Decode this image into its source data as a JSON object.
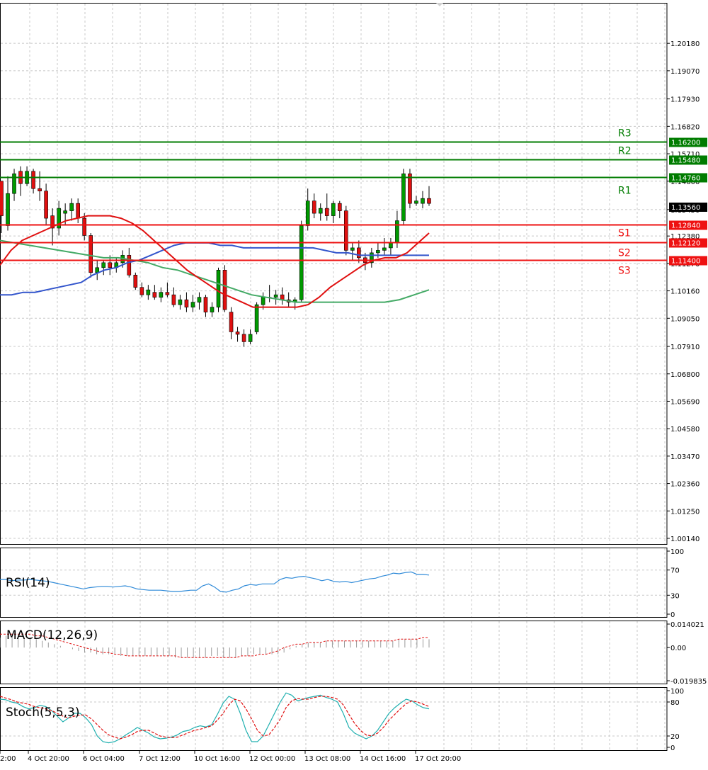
{
  "chart_data": [
    {
      "type": "candlestick",
      "panel": "price",
      "ylim": [
        1.0014,
        1.2073
      ],
      "price_ticks": [
        "1.20180",
        "1.19070",
        "1.17930",
        "1.16820",
        "1.15710",
        "1.14600",
        "1.13450",
        "1.12380",
        "1.11270",
        "1.10160",
        "1.09050",
        "1.07910",
        "1.06800",
        "1.05690",
        "1.04580",
        "1.03470",
        "1.02360",
        "1.01250",
        "1.00140"
      ],
      "x_ticks": [
        "2:00",
        "4 Oct 20:00",
        "6 Oct 04:00",
        "7 Oct 12:00",
        "10 Oct 16:00",
        "12 Oct 00:00",
        "13 Oct 08:00",
        "14 Oct 16:00",
        "17 Oct 20:00"
      ],
      "current_price": {
        "value": 1.1356,
        "label": "1.13560",
        "color": "#000000"
      },
      "levels": [
        {
          "name": "R3",
          "value": 1.162,
          "label": "1.16200",
          "color": "#007c00"
        },
        {
          "name": "R2",
          "value": 1.1548,
          "label": "1.15480",
          "color": "#007c00"
        },
        {
          "name": "R1",
          "value": 1.1476,
          "label": "1.14760",
          "color": "#007c00"
        },
        {
          "name": "S1",
          "value": 1.1284,
          "label": "1.12840",
          "color": "#ee1111"
        },
        {
          "name": "S2",
          "value": 1.1212,
          "label": "1.12120",
          "color": "#ee1111"
        },
        {
          "name": "S3",
          "value": 1.114,
          "label": "1.11400",
          "color": "#ee1111"
        }
      ],
      "candles": [
        [
          1.146,
          1.144,
          1.125,
          1.132
        ],
        [
          1.128,
          1.148,
          1.126,
          1.141
        ],
        [
          1.141,
          1.151,
          1.138,
          1.149
        ],
        [
          1.15,
          1.152,
          1.14,
          1.145
        ],
        [
          1.145,
          1.152,
          1.144,
          1.15
        ],
        [
          1.15,
          1.151,
          1.141,
          1.143
        ],
        [
          1.143,
          1.15,
          1.138,
          1.142
        ],
        [
          1.142,
          1.145,
          1.128,
          1.131
        ],
        [
          1.132,
          1.135,
          1.12,
          1.127
        ],
        [
          1.127,
          1.138,
          1.124,
          1.135
        ],
        [
          1.133,
          1.137,
          1.128,
          1.134
        ],
        [
          1.134,
          1.139,
          1.13,
          1.137
        ],
        [
          1.137,
          1.139,
          1.129,
          1.131
        ],
        [
          1.131,
          1.133,
          1.122,
          1.124
        ],
        [
          1.124,
          1.125,
          1.107,
          1.109
        ],
        [
          1.109,
          1.114,
          1.106,
          1.111
        ],
        [
          1.111,
          1.114,
          1.108,
          1.113
        ],
        [
          1.113,
          1.116,
          1.108,
          1.111
        ],
        [
          1.111,
          1.115,
          1.109,
          1.113
        ],
        [
          1.113,
          1.118,
          1.111,
          1.116
        ],
        [
          1.116,
          1.119,
          1.107,
          1.108
        ],
        [
          1.108,
          1.109,
          1.102,
          1.103
        ],
        [
          1.103,
          1.105,
          1.099,
          1.1
        ],
        [
          1.1,
          1.104,
          1.098,
          1.102
        ],
        [
          1.101,
          1.104,
          1.098,
          1.099
        ],
        [
          1.099,
          1.103,
          1.097,
          1.101
        ],
        [
          1.101,
          1.105,
          1.099,
          1.1
        ],
        [
          1.1,
          1.103,
          1.095,
          1.096
        ],
        [
          1.096,
          1.1,
          1.094,
          1.098
        ],
        [
          1.098,
          1.101,
          1.093,
          1.095
        ],
        [
          1.095,
          1.1,
          1.093,
          1.097
        ],
        [
          1.097,
          1.101,
          1.094,
          1.099
        ],
        [
          1.099,
          1.1,
          1.091,
          1.093
        ],
        [
          1.093,
          1.097,
          1.091,
          1.095
        ],
        [
          1.095,
          1.111,
          1.093,
          1.11
        ],
        [
          1.11,
          1.112,
          1.093,
          1.094
        ],
        [
          1.093,
          1.095,
          1.082,
          1.085
        ],
        [
          1.085,
          1.087,
          1.081,
          1.084
        ],
        [
          1.084,
          1.086,
          1.079,
          1.081
        ],
        [
          1.081,
          1.086,
          1.08,
          1.084
        ],
        [
          1.085,
          1.097,
          1.084,
          1.096
        ],
        [
          1.096,
          1.101,
          1.094,
          1.099
        ],
        [
          1.099,
          1.104,
          1.097,
          1.099
        ],
        [
          1.099,
          1.102,
          1.096,
          1.1
        ],
        [
          1.1,
          1.103,
          1.096,
          1.098
        ],
        [
          1.098,
          1.101,
          1.095,
          1.097
        ],
        [
          1.097,
          1.099,
          1.094,
          1.098
        ],
        [
          1.098,
          1.13,
          1.097,
          1.128
        ],
        [
          1.128,
          1.143,
          1.126,
          1.138
        ],
        [
          1.138,
          1.141,
          1.131,
          1.133
        ],
        [
          1.133,
          1.137,
          1.13,
          1.135
        ],
        [
          1.135,
          1.141,
          1.13,
          1.132
        ],
        [
          1.132,
          1.138,
          1.129,
          1.137
        ],
        [
          1.137,
          1.138,
          1.131,
          1.134
        ],
        [
          1.134,
          1.136,
          1.116,
          1.118
        ],
        [
          1.118,
          1.121,
          1.114,
          1.119
        ],
        [
          1.119,
          1.122,
          1.113,
          1.115
        ],
        [
          1.115,
          1.117,
          1.11,
          1.113
        ],
        [
          1.113,
          1.119,
          1.111,
          1.117
        ],
        [
          1.117,
          1.121,
          1.115,
          1.118
        ],
        [
          1.118,
          1.123,
          1.116,
          1.119
        ],
        [
          1.119,
          1.123,
          1.116,
          1.121
        ],
        [
          1.121,
          1.134,
          1.119,
          1.13
        ],
        [
          1.13,
          1.151,
          1.128,
          1.149
        ],
        [
          1.149,
          1.151,
          1.135,
          1.137
        ],
        [
          1.137,
          1.14,
          1.136,
          1.138
        ],
        [
          1.137,
          1.142,
          1.135,
          1.139
        ],
        [
          1.139,
          1.144,
          1.136,
          1.137
        ]
      ],
      "ma_red": [
        1.112,
        1.118,
        1.122,
        1.124,
        1.126,
        1.128,
        1.13,
        1.131,
        1.132,
        1.132,
        1.132,
        1.131,
        1.129,
        1.126,
        1.122,
        1.118,
        1.114,
        1.11,
        1.107,
        1.104,
        1.101,
        1.099,
        1.097,
        1.095,
        1.095,
        1.095,
        1.095,
        1.095,
        1.096,
        1.099,
        1.103,
        1.106,
        1.109,
        1.112,
        1.114,
        1.115,
        1.115,
        1.117,
        1.121,
        1.125
      ],
      "ma_blue": [
        1.1,
        1.1,
        1.101,
        1.101,
        1.102,
        1.103,
        1.104,
        1.105,
        1.108,
        1.11,
        1.111,
        1.113,
        1.114,
        1.116,
        1.118,
        1.12,
        1.121,
        1.121,
        1.121,
        1.12,
        1.12,
        1.119,
        1.119,
        1.119,
        1.119,
        1.119,
        1.119,
        1.119,
        1.118,
        1.117,
        1.117,
        1.116,
        1.116,
        1.116,
        1.116,
        1.116,
        1.116,
        1.116
      ],
      "ma_green": [
        1.122,
        1.121,
        1.12,
        1.119,
        1.118,
        1.117,
        1.116,
        1.115,
        1.115,
        1.114,
        1.113,
        1.111,
        1.11,
        1.108,
        1.106,
        1.104,
        1.102,
        1.1,
        1.099,
        1.098,
        1.097,
        1.097,
        1.097,
        1.097,
        1.097,
        1.097,
        1.097,
        1.098,
        1.1,
        1.102
      ]
    },
    {
      "type": "line",
      "panel": "rsi",
      "title": "RSI(14)",
      "ylim": [
        0,
        100
      ],
      "y_ticks": [
        "100",
        "70",
        "30",
        "0"
      ],
      "values": [
        55,
        55,
        53,
        54,
        54,
        55,
        54,
        53,
        52,
        50,
        48,
        46,
        44,
        42,
        40,
        42,
        43,
        44,
        44,
        43,
        44,
        45,
        43,
        40,
        39,
        38,
        38,
        38,
        37,
        36,
        36,
        37,
        38,
        38,
        45,
        48,
        43,
        36,
        35,
        38,
        40,
        45,
        47,
        46,
        48,
        48,
        48,
        55,
        58,
        57,
        59,
        60,
        58,
        56,
        53,
        55,
        52,
        51,
        52,
        50,
        52,
        54,
        56,
        57,
        60,
        62,
        65,
        64,
        66,
        67,
        63,
        63,
        62
      ]
    },
    {
      "type": "macd",
      "panel": "macd",
      "title": "MACD(12,26,9)",
      "ylim": [
        -0.019835,
        0.014021
      ],
      "y_ticks": [
        "0.014021",
        "0.00",
        "-0.019835"
      ],
      "histogram": [
        0.006,
        0.007,
        0.007,
        0.006,
        0.006,
        0.006,
        0.005,
        0.004,
        0.003,
        0.002,
        0.001,
        0.0,
        -0.001,
        -0.002,
        -0.003,
        -0.003,
        -0.004,
        -0.004,
        -0.004,
        -0.004,
        -0.005,
        -0.005,
        -0.005,
        -0.005,
        -0.005,
        -0.005,
        -0.005,
        -0.005,
        -0.005,
        -0.006,
        -0.006,
        -0.006,
        -0.006,
        -0.006,
        -0.006,
        -0.005,
        -0.005,
        -0.006,
        -0.006,
        -0.006,
        -0.005,
        -0.005,
        -0.004,
        -0.004,
        -0.004,
        -0.004,
        -0.004,
        -0.003,
        -0.001,
        0.001,
        0.002,
        0.003,
        0.003,
        0.003,
        0.004,
        0.004,
        0.004,
        0.004,
        0.004,
        0.004,
        0.004,
        0.004,
        0.004,
        0.004,
        0.004,
        0.004,
        0.005,
        0.005,
        0.005,
        0.005,
        0.005,
        0.005
      ],
      "signal": [
        0.008,
        0.008,
        0.008,
        0.008,
        0.008,
        0.008,
        0.007,
        0.007,
        0.006,
        0.005,
        0.004,
        0.003,
        0.002,
        0.001,
        0.0,
        -0.001,
        -0.002,
        -0.003,
        -0.003,
        -0.004,
        -0.004,
        -0.005,
        -0.005,
        -0.005,
        -0.005,
        -0.005,
        -0.005,
        -0.005,
        -0.005,
        -0.005,
        -0.006,
        -0.006,
        -0.006,
        -0.006,
        -0.006,
        -0.006,
        -0.006,
        -0.006,
        -0.006,
        -0.006,
        -0.005,
        -0.005,
        -0.005,
        -0.004,
        -0.004,
        -0.003,
        -0.002,
        0.0,
        0.001,
        0.002,
        0.002,
        0.003,
        0.003,
        0.003,
        0.004,
        0.004,
        0.004,
        0.004,
        0.004,
        0.004,
        0.004,
        0.004,
        0.004,
        0.004,
        0.004,
        0.004,
        0.005,
        0.005,
        0.005,
        0.005,
        0.006,
        0.006
      ]
    },
    {
      "type": "line",
      "panel": "stoch",
      "title": "Stoch(5,5,3)",
      "ylim": [
        0,
        100
      ],
      "y_ticks": [
        "100",
        "80",
        "20",
        "0"
      ],
      "k_line": [
        85,
        84,
        80,
        78,
        72,
        68,
        70,
        74,
        72,
        65,
        55,
        45,
        52,
        60,
        60,
        52,
        40,
        20,
        10,
        8,
        10,
        15,
        22,
        28,
        35,
        30,
        25,
        18,
        15,
        16,
        18,
        22,
        28,
        30,
        35,
        38,
        36,
        40,
        58,
        78,
        90,
        85,
        60,
        30,
        10,
        10,
        20,
        40,
        60,
        80,
        96,
        92,
        82,
        85,
        88,
        90,
        92,
        88,
        85,
        80,
        60,
        35,
        25,
        20,
        15,
        20,
        30,
        45,
        60,
        70,
        78,
        85,
        82,
        75,
        70,
        68
      ],
      "d_line": [
        90,
        87,
        84,
        80,
        78,
        76,
        72,
        70,
        68,
        65,
        60,
        55,
        52,
        55,
        57,
        57,
        50,
        40,
        30,
        22,
        18,
        15,
        18,
        22,
        28,
        30,
        30,
        25,
        20,
        18,
        17,
        18,
        22,
        26,
        30,
        32,
        35,
        38,
        48,
        60,
        75,
        85,
        82,
        68,
        50,
        30,
        20,
        22,
        35,
        50,
        70,
        82,
        86,
        85,
        85,
        88,
        90,
        90,
        88,
        85,
        75,
        58,
        42,
        30,
        22,
        20,
        25,
        35,
        48,
        58,
        68,
        77,
        82,
        80,
        76,
        72
      ]
    }
  ]
}
